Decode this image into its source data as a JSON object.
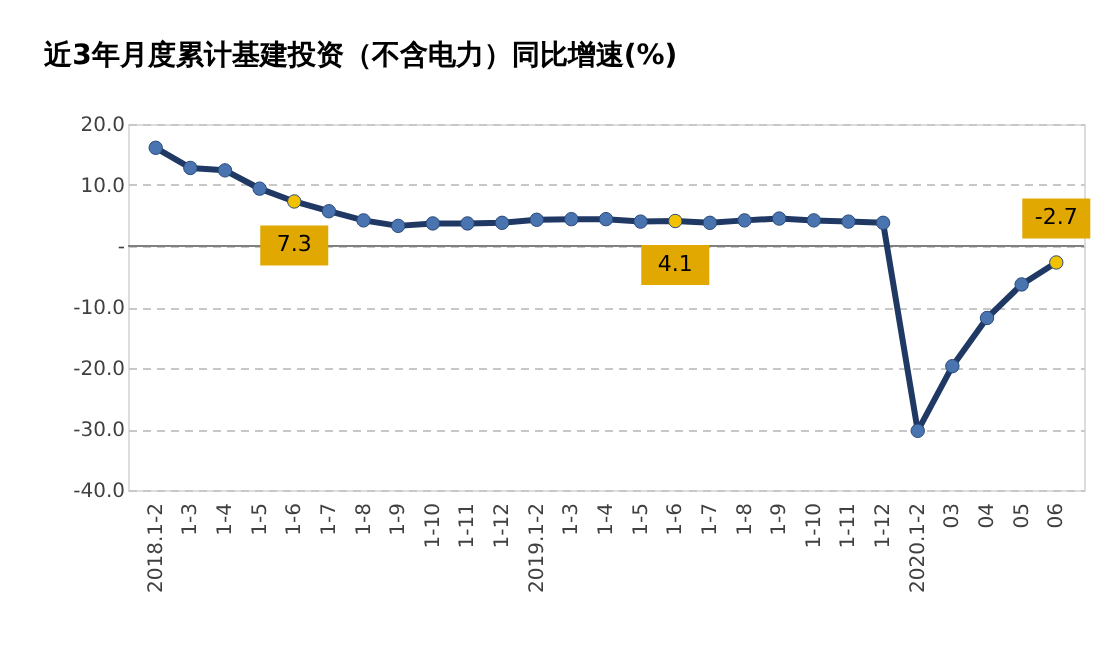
{
  "chart_data": {
    "type": "line",
    "title": "近3年月度累计基建投资（不含电力）同比增速(%)",
    "categories": [
      "2018.1-2",
      "1-3",
      "1-4",
      "1-5",
      "1-6",
      "1-7",
      "1-8",
      "1-9",
      "1-10",
      "1-11",
      "1-12",
      "2019.1-2",
      "1-3",
      "1-4",
      "1-5",
      "1-6",
      "1-7",
      "1-8",
      "1-9",
      "1-10",
      "1-11",
      "1-12",
      "2020.1-2",
      "03",
      "04",
      "05",
      "06"
    ],
    "series": [
      {
        "color": "#1f3864",
        "values": [
          16.1,
          12.8,
          12.4,
          9.4,
          7.3,
          5.7,
          4.2,
          3.3,
          3.7,
          3.7,
          3.8,
          4.3,
          4.4,
          4.4,
          4.0,
          4.1,
          3.8,
          4.2,
          4.5,
          4.2,
          4.0,
          3.8,
          -30.3,
          -19.7,
          -11.8,
          -6.3,
          -2.7
        ],
        "colors": [
          "#4a74b0",
          "#4a74b0",
          "#4a74b0",
          "#4a74b0",
          "#f2c200",
          "#4a74b0",
          "#4a74b0",
          "#4a74b0",
          "#4a74b0",
          "#4a74b0",
          "#4a74b0",
          "#4a74b0",
          "#4a74b0",
          "#4a74b0",
          "#4a74b0",
          "#f2c200",
          "#4a74b0",
          "#4a74b0",
          "#4a74b0",
          "#4a74b0",
          "#4a74b0",
          "#4a74b0",
          "#4a74b0",
          "#4a74b0",
          "#4a74b0",
          "#4a74b0",
          "#f2c200"
        ],
        "value_labels": [
          null,
          null,
          null,
          null,
          "7.3",
          null,
          null,
          null,
          null,
          null,
          null,
          null,
          null,
          null,
          null,
          "4.1",
          null,
          null,
          null,
          null,
          null,
          null,
          null,
          null,
          null,
          null,
          "-2.7"
        ]
      }
    ],
    "ylim": [
      -40,
      20
    ],
    "yticks": [
      {
        "value": 20,
        "label": "20.0"
      },
      {
        "value": 10,
        "label": "10.0"
      },
      {
        "value": 0,
        "label": "-"
      },
      {
        "value": -10,
        "label": "-10.0"
      },
      {
        "value": -20,
        "label": "-20.0"
      },
      {
        "value": -30,
        "label": "-30.0"
      },
      {
        "value": -40,
        "label": "-40.0"
      }
    ],
    "grid": "y",
    "marker": "circle",
    "line_style": "solid",
    "ref_lines": [
      {
        "axis": "y",
        "value": 0,
        "color": "#808080",
        "line_style": "solid"
      }
    ]
  }
}
